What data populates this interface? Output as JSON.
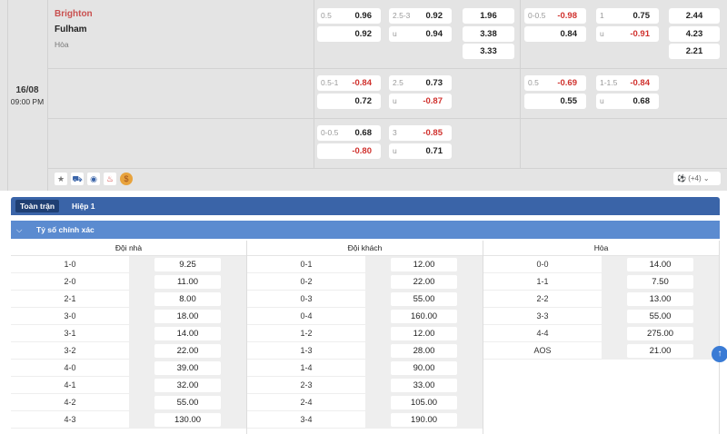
{
  "match": {
    "date": "16/08",
    "time": "09:00 PM",
    "home": "Brighton",
    "away": "Fulham",
    "draw": "Hòa"
  },
  "odds": [
    [
      [
        [
          "0.5",
          "0.96"
        ],
        [
          "",
          "0.92"
        ]
      ],
      [
        [
          "2.5-3",
          "0.92"
        ],
        [
          "u",
          "0.94"
        ]
      ],
      [
        [
          "",
          "1.96"
        ],
        [
          "",
          "3.38"
        ],
        [
          "",
          "3.33"
        ]
      ],
      [
        [
          "0-0.5",
          "-0.98"
        ],
        [
          "",
          "0.84"
        ]
      ],
      [
        [
          "1",
          "0.75"
        ],
        [
          "u",
          "-0.91"
        ]
      ],
      [
        [
          "",
          "2.44"
        ],
        [
          "",
          "4.23"
        ],
        [
          "",
          "2.21"
        ]
      ]
    ],
    [
      [
        [
          "0.5-1",
          "-0.84"
        ],
        [
          "",
          "0.72"
        ]
      ],
      [
        [
          "2.5",
          "0.73"
        ],
        [
          "u",
          "-0.87"
        ]
      ],
      [],
      [
        [
          "0.5",
          "-0.69"
        ],
        [
          "",
          "0.55"
        ]
      ],
      [
        [
          "1-1.5",
          "-0.84"
        ],
        [
          "u",
          "0.68"
        ]
      ],
      []
    ],
    [
      [
        [
          "0-0.5",
          "0.68"
        ],
        [
          "",
          "-0.80"
        ]
      ],
      [
        [
          "3",
          "-0.85"
        ],
        [
          "u",
          "0.71"
        ]
      ],
      [],
      [],
      [],
      []
    ]
  ],
  "more_label": "(+4)",
  "icons": [
    "star-icon",
    "bus-icon",
    "eye-icon",
    "fire-icon",
    "coin-icon"
  ],
  "tabs": [
    "Toàn trận",
    "Hiệp 1"
  ],
  "section_title": "Tỷ số chính xác",
  "columns": [
    {
      "title": "Đội nhà",
      "rows": [
        [
          "1-0",
          "9.25"
        ],
        [
          "2-0",
          "11.00"
        ],
        [
          "2-1",
          "8.00"
        ],
        [
          "3-0",
          "18.00"
        ],
        [
          "3-1",
          "14.00"
        ],
        [
          "3-2",
          "22.00"
        ],
        [
          "4-0",
          "39.00"
        ],
        [
          "4-1",
          "32.00"
        ],
        [
          "4-2",
          "55.00"
        ],
        [
          "4-3",
          "130.00"
        ]
      ]
    },
    {
      "title": "Đội khách",
      "rows": [
        [
          "0-1",
          "12.00"
        ],
        [
          "0-2",
          "22.00"
        ],
        [
          "0-3",
          "55.00"
        ],
        [
          "0-4",
          "160.00"
        ],
        [
          "1-2",
          "12.00"
        ],
        [
          "1-3",
          "28.00"
        ],
        [
          "1-4",
          "90.00"
        ],
        [
          "2-3",
          "33.00"
        ],
        [
          "2-4",
          "105.00"
        ],
        [
          "3-4",
          "190.00"
        ]
      ]
    },
    {
      "title": "Hòa",
      "rows": [
        [
          "0-0",
          "14.00"
        ],
        [
          "1-1",
          "7.50"
        ],
        [
          "2-2",
          "13.00"
        ],
        [
          "3-3",
          "55.00"
        ],
        [
          "4-4",
          "275.00"
        ],
        [
          "AOS",
          "21.00"
        ]
      ]
    }
  ],
  "colors": {
    "tab_bar": "#3a64a8",
    "section": "#5b8bd0",
    "negative": "#d0312d",
    "home": "#c9504f"
  }
}
